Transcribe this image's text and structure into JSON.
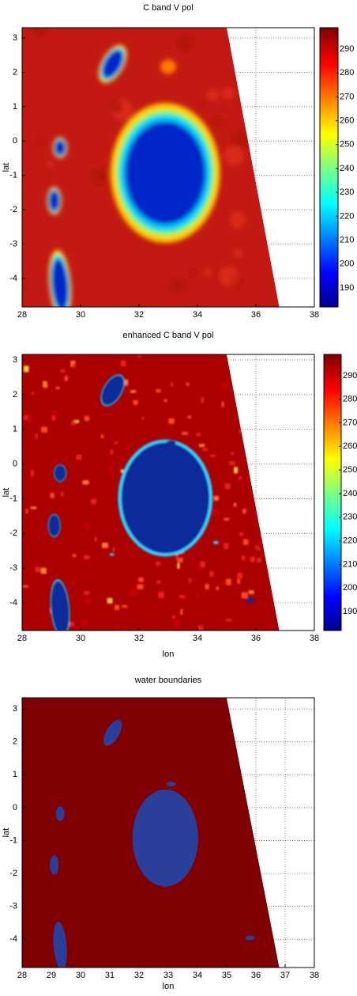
{
  "chart_data": [
    {
      "type": "heatmap",
      "title": "C band V pol",
      "ylabel": "lat",
      "colormap": "jet",
      "grid": true,
      "xlim": [
        28,
        38
      ],
      "xticks": [
        28,
        30,
        32,
        34,
        36,
        38
      ],
      "ylim": [
        -4.83,
        3.3
      ],
      "yticks": [
        3,
        2,
        1,
        0,
        -1,
        -2,
        -3,
        -4
      ],
      "colorbar": {
        "lim": [
          182,
          299
        ],
        "ticks": [
          190,
          200,
          210,
          220,
          230,
          240,
          250,
          260,
          270,
          280,
          290
        ]
      }
    },
    {
      "type": "heatmap",
      "title": "enhanced  C band V pol",
      "xlabel": "lon",
      "ylabel": "lat",
      "colormap": "jet",
      "grid": true,
      "xlim": [
        28,
        38
      ],
      "xticks": [
        28,
        30,
        32,
        34,
        36,
        38
      ],
      "ylim": [
        -4.8,
        3.16
      ],
      "yticks": [
        3,
        2,
        1,
        0,
        -1,
        -2,
        -3,
        -4
      ],
      "colorbar": {
        "lim": [
          182,
          299
        ],
        "ticks": [
          190,
          200,
          210,
          220,
          230,
          240,
          250,
          260,
          270,
          280,
          290
        ]
      }
    },
    {
      "type": "heatmap",
      "title": "water boundaries",
      "xlabel": "lon",
      "ylabel": "lat",
      "colormap": "binary",
      "grid": true,
      "xlim": [
        28,
        38
      ],
      "xticks": [
        28,
        29,
        30,
        31,
        32,
        33,
        34,
        35,
        36,
        37,
        38
      ],
      "ylim": [
        -4.86,
        3.34
      ],
      "yticks": [
        3,
        2,
        1,
        0,
        -1,
        -2,
        -3,
        -4
      ]
    }
  ]
}
